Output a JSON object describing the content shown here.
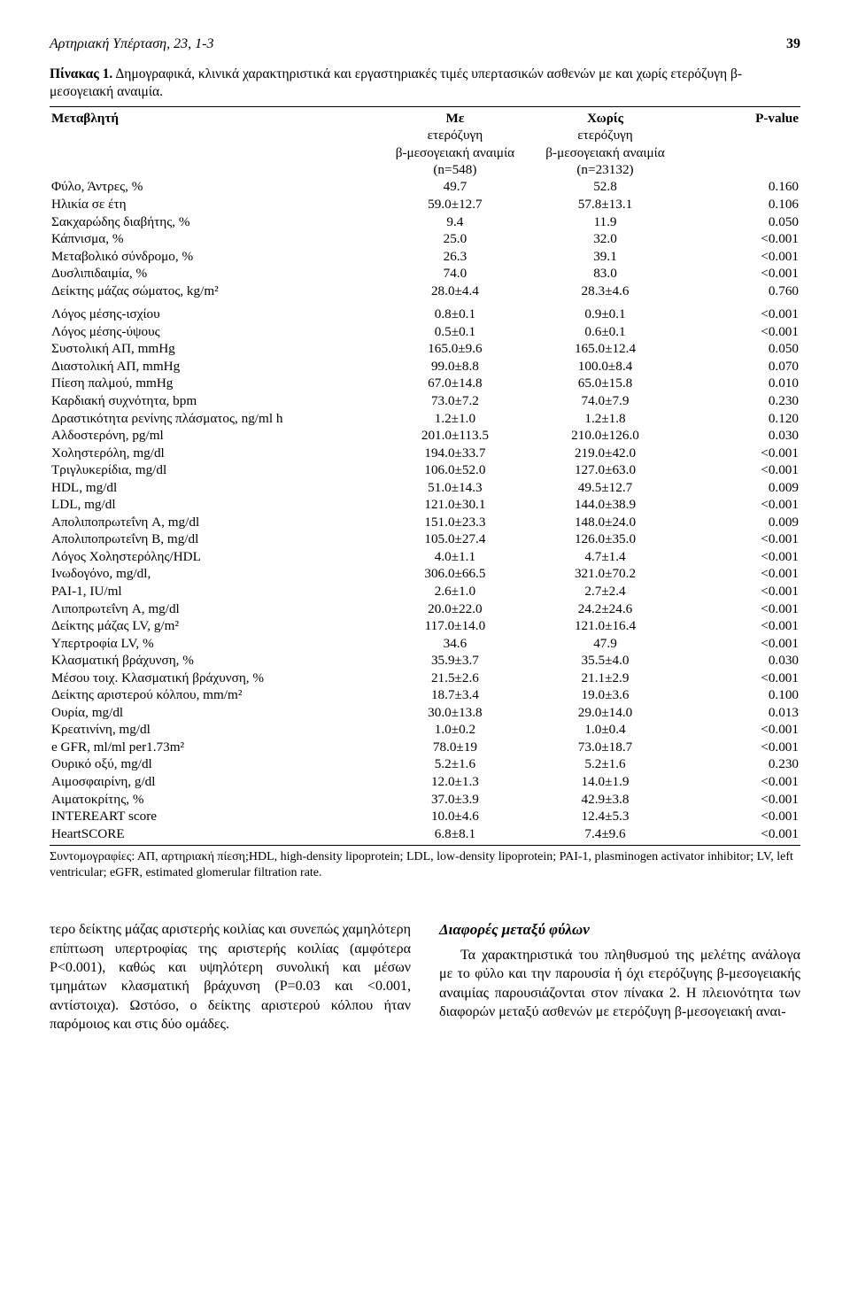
{
  "header": {
    "journal": "Αρτηριακή Υπέρταση, 23, 1-3",
    "page": "39"
  },
  "caption": {
    "lead": "Πίνακας 1.",
    "text": " Δημογραφικά, κλινικά χαρακτηριστικά και εργαστηριακές τιμές υπερτασικών ασθενών με και χωρίς ετερόζυγη β-μεσογειακή αναιμία."
  },
  "table": {
    "head": {
      "var": "Μεταβλητή",
      "with_l1": "Με",
      "with_l2": "ετερόζυγη",
      "with_l3": "β-μεσογειακή αναιμία",
      "with_l4": "(n=548)",
      "without_l1": "Χωρίς",
      "without_l2": "ετερόζυγη",
      "without_l3": "β-μεσογειακή αναιμία",
      "without_l4": "(n=23132)",
      "p": "P-value"
    },
    "rows": [
      {
        "l": "Φύλο, Άντρες, %",
        "a": "49.7",
        "b": "52.8",
        "p": "0.160"
      },
      {
        "l": "Ηλικία σε έτη",
        "a": "59.0±12.7",
        "b": "57.8±13.1",
        "p": "0.106"
      },
      {
        "l": "Σακχαρώδης διαβήτης, %",
        "a": "9.4",
        "b": "11.9",
        "p": "0.050"
      },
      {
        "l": "Κάπνισμα, %",
        "a": "25.0",
        "b": "32.0",
        "p": "<0.001"
      },
      {
        "l": "Μεταβολικό σύνδρομο, %",
        "a": "26.3",
        "b": "39.1",
        "p": "<0.001"
      },
      {
        "l": "Δυσλιπιδαιμία, %",
        "a": "74.0",
        "b": "83.0",
        "p": "<0.001"
      },
      {
        "l": "Δείκτης μάζας σώματος, kg/m²",
        "a": "28.0±4.4",
        "b": "28.3±4.6",
        "p": "0.760"
      }
    ],
    "rows2": [
      {
        "l": "Λόγος μέσης-ισχίου",
        "a": "0.8±0.1",
        "b": "0.9±0.1",
        "p": "<0.001"
      },
      {
        "l": "Λόγος μέσης-ύψους",
        "a": "0.5±0.1",
        "b": "0.6±0.1",
        "p": "<0.001"
      },
      {
        "l": "Συστολική ΑΠ, mmHg",
        "a": "165.0±9.6",
        "b": "165.0±12.4",
        "p": "0.050"
      },
      {
        "l": "Διαστολική ΑΠ, mmHg",
        "a": "99.0±8.8",
        "b": "100.0±8.4",
        "p": "0.070"
      },
      {
        "l": "Πίεση παλμού, mmHg",
        "a": "67.0±14.8",
        "b": "65.0±15.8",
        "p": "0.010"
      },
      {
        "l": "Καρδιακή συχνότητα, bpm",
        "a": "73.0±7.2",
        "b": "74.0±7.9",
        "p": "0.230"
      },
      {
        "l": "Δραστικότητα ρενίνης πλάσματος, ng/ml h",
        "a": "1.2±1.0",
        "b": "1.2±1.8",
        "p": "0.120"
      },
      {
        "l": "Αλδοστερόνη, pg/ml",
        "a": "201.0±113.5",
        "b": "210.0±126.0",
        "p": "0.030"
      },
      {
        "l": "Χοληστερόλη, mg/dl",
        "a": "194.0±33.7",
        "b": "219.0±42.0",
        "p": "<0.001"
      },
      {
        "l": "Τριγλυκερίδια, mg/dl",
        "a": "106.0±52.0",
        "b": "127.0±63.0",
        "p": "<0.001"
      },
      {
        "l": "HDL, mg/dl",
        "a": "51.0±14.3",
        "b": "49.5±12.7",
        "p": "0.009"
      },
      {
        "l": "LDL, mg/dl",
        "a": "121.0±30.1",
        "b": "144.0±38.9",
        "p": "<0.001"
      },
      {
        "l": "Απολιποπρωτεΐνη A, mg/dl",
        "a": "151.0±23.3",
        "b": "148.0±24.0",
        "p": "0.009"
      },
      {
        "l": "Απολιποπρωτεΐνη B, mg/dl",
        "a": "105.0±27.4",
        "b": "126.0±35.0",
        "p": "<0.001"
      },
      {
        "l": "Λόγος Χοληστερόλης/HDL",
        "a": "4.0±1.1",
        "b": "4.7±1.4",
        "p": "<0.001"
      },
      {
        "l": "Ινωδογόνο, mg/dl,",
        "a": "306.0±66.5",
        "b": "321.0±70.2",
        "p": "<0.001"
      },
      {
        "l": "PAI-1, IU/ml",
        "a": "2.6±1.0",
        "b": "2.7±2.4",
        "p": "<0.001"
      },
      {
        "l": "Λιποπρωτεΐνη A, mg/dl",
        "a": "20.0±22.0",
        "b": "24.2±24.6",
        "p": "<0.001"
      },
      {
        "l": "Δείκτης μάζας LV, g/m²",
        "a": "117.0±14.0",
        "b": "121.0±16.4",
        "p": "<0.001"
      },
      {
        "l": "Υπερτροφία LV, %",
        "a": "34.6",
        "b": "47.9",
        "p": "<0.001"
      },
      {
        "l": "Κλασματική βράχυνση, %",
        "a": "35.9±3.7",
        "b": "35.5±4.0",
        "p": "0.030"
      },
      {
        "l": "Μέσου τοιχ. Κλασματική βράχυνση, %",
        "a": "21.5±2.6",
        "b": "21.1±2.9",
        "p": "<0.001"
      },
      {
        "l": "Δείκτης αριστερού κόλπου, mm/m²",
        "a": "18.7±3.4",
        "b": "19.0±3.6",
        "p": "0.100"
      },
      {
        "l": "Ουρία, mg/dl",
        "a": "30.0±13.8",
        "b": "29.0±14.0",
        "p": "0.013"
      },
      {
        "l": "Κρεατινίνη, mg/dl",
        "a": "1.0±0.2",
        "b": "1.0±0.4",
        "p": "<0.001"
      },
      {
        "l": "e GFR, ml/ml per1.73m²",
        "a": "78.0±19",
        "b": "73.0±18.7",
        "p": "<0.001"
      },
      {
        "l": "Ουρικό οξύ, mg/dl",
        "a": "5.2±1.6",
        "b": "5.2±1.6",
        "p": "0.230"
      },
      {
        "l": "Αιμοσφαιρίνη, g/dl",
        "a": "12.0±1.3",
        "b": "14.0±1.9",
        "p": "<0.001"
      },
      {
        "l": "Αιματοκρίτης, %",
        "a": "37.0±3.9",
        "b": "42.9±3.8",
        "p": "<0.001"
      },
      {
        "l": "INTEREART score",
        "a": "10.0±4.6",
        "b": "12.4±5.3",
        "p": "<0.001"
      },
      {
        "l": "HeartSCORE",
        "a": "6.8±8.1",
        "b": "7.4±9.6",
        "p": "<0.001"
      }
    ]
  },
  "abbrev": "Συντομογραφίες: ΑΠ, αρτηριακή πίεση;HDL, high-density lipoprotein; LDL, low-density lipoprotein; PAI-1, plasminogen activator inhibitor; LV, left ventricular; eGFR, estimated glomerular filtration rate.",
  "left_para": "τερο δείκτης μάζας αριστερής κοιλίας και συνεπώς χαμηλότερη επίπτωση υπερτροφίας της αριστερής κοιλίας (αμφότερα P<0.001), καθώς και υψηλότερη συνολική και μέσων τμημάτων κλασματική βράχυνση (P=0.03 και <0.001, αντίστοιχα). Ωστόσο, ο δείκτης αριστερού κόλπου ήταν παρόμοιος και στις δύο ομάδες.",
  "right_head": "Διαφορές μεταξύ φύλων",
  "right_para": "Τα χαρακτηριστικά του πληθυσμού της μελέτης ανάλογα με το φύλο και την παρουσία ή όχι ετερόζυγης β-μεσογειακής αναιμίας παρουσιάζονται στον πίνακα 2. Η πλειονότητα των διαφορών μεταξύ ασθενών με ετερόζυγη β-μεσογειακή αναι-"
}
